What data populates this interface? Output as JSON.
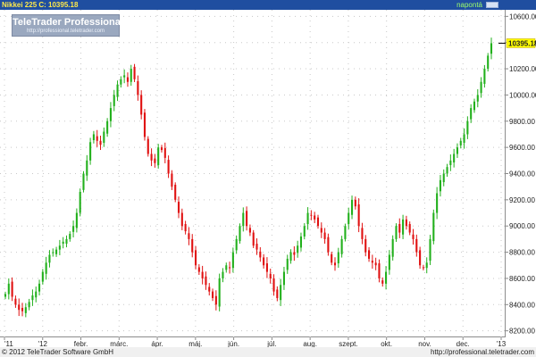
{
  "header": {
    "symbol_label": "Nikkei 225 C: 10395.18",
    "period_label": "napontá"
  },
  "logo": {
    "title": "TeleTrader Professional",
    "url": "http://professional.teletrader.com"
  },
  "footer": {
    "copyright": "© 2012 TeleTrader Software GmbH",
    "url": "http://professional.teletrader.com"
  },
  "colors": {
    "up": "#22b01c",
    "down": "#e01010",
    "header_bg": "#1f4ea0",
    "last_price_box": "#ffff00"
  },
  "chart_data": {
    "type": "candlestick",
    "title": "Nikkei 225",
    "last_value_label": "10395.18",
    "y_ticks": [
      8200,
      8400,
      8600,
      8800,
      9000,
      9200,
      9400,
      9600,
      9800,
      10000,
      10200,
      10400,
      10600
    ],
    "y_tick_labels": [
      "8200.00",
      "8400.00",
      "8600.00",
      "8800.00",
      "9000.00",
      "9200.00",
      "9400.00",
      "9600.00",
      "9800.00",
      "10000.00",
      "10200.00",
      "10400.00",
      "10600.00"
    ],
    "ylim": [
      8150,
      10650
    ],
    "x_ticks": [
      "'11",
      "'12",
      "febr.",
      "márc.",
      "ápr.",
      "máj.",
      "jún.",
      "júl.",
      "aug.",
      "szept.",
      "okt.",
      "nov.",
      "dec.",
      "'13"
    ],
    "grid": true,
    "y_axis_side": "right",
    "close_series": [
      8480,
      8560,
      8460,
      8400,
      8360,
      8350,
      8380,
      8420,
      8470,
      8500,
      8560,
      8650,
      8720,
      8780,
      8800,
      8820,
      8850,
      8880,
      8900,
      8940,
      9000,
      9100,
      9260,
      9400,
      9500,
      9640,
      9700,
      9650,
      9620,
      9720,
      9800,
      9900,
      10000,
      10080,
      10120,
      10150,
      10100,
      10200,
      10120,
      10000,
      9850,
      9680,
      9550,
      9500,
      9480,
      9600,
      9580,
      9520,
      9400,
      9300,
      9200,
      9100,
      9000,
      8960,
      8900,
      8800,
      8700,
      8650,
      8600,
      8550,
      8500,
      8450,
      8400,
      8600,
      8650,
      8700,
      8680,
      8800,
      8900,
      9000,
      9100,
      9000,
      8950,
      8850,
      8820,
      8760,
      8700,
      8650,
      8600,
      8500,
      8450,
      8550,
      8650,
      8750,
      8800,
      8780,
      8850,
      8920,
      9000,
      9100,
      9080,
      9050,
      9000,
      8950,
      8900,
      8800,
      8720,
      8700,
      8800,
      8900,
      9000,
      9100,
      9200,
      9150,
      9000,
      8900,
      8800,
      8750,
      8720,
      8700,
      8600,
      8560,
      8650,
      8780,
      8900,
      9000,
      8950,
      9050,
      9000,
      8950,
      8900,
      8800,
      8700,
      8680,
      8720,
      8900,
      9100,
      9250,
      9350,
      9400,
      9450,
      9500,
      9550,
      9600,
      9650,
      9700,
      9800,
      9900,
      9950,
      10000,
      10100,
      10200,
      10300,
      10395
    ]
  }
}
